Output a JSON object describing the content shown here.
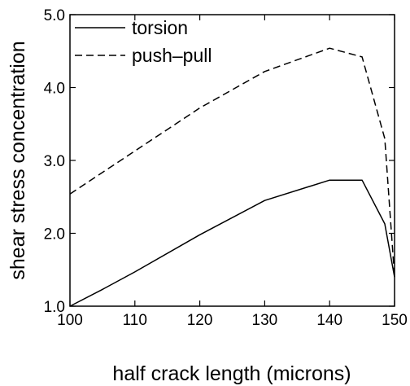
{
  "chart_data": {
    "type": "line",
    "title": "",
    "xlabel": "half crack length (microns)",
    "ylabel": "shear stress concentration",
    "xlim": [
      100,
      150
    ],
    "ylim": [
      1.0,
      5.0
    ],
    "xticks": [
      100,
      110,
      120,
      130,
      140,
      150
    ],
    "xtick_labels": [
      "100",
      "110",
      "120",
      "130",
      "140",
      "150"
    ],
    "yticks": [
      1.0,
      2.0,
      3.0,
      4.0,
      5.0
    ],
    "ytick_labels": [
      "1.0",
      "2.0",
      "3.0",
      "4.0",
      "5.0"
    ],
    "grid": false,
    "legend_position": "top-left",
    "series": [
      {
        "name": "torsion",
        "style": "solid",
        "color": "#000000",
        "points": [
          [
            100,
            1.0
          ],
          [
            105,
            1.23
          ],
          [
            110,
            1.47
          ],
          [
            120,
            1.98
          ],
          [
            130,
            2.45
          ],
          [
            140,
            2.73
          ],
          [
            145,
            2.73
          ],
          [
            148.5,
            2.13
          ],
          [
            150,
            1.4
          ]
        ]
      },
      {
        "name": "push–pull",
        "style": "dashed",
        "color": "#000000",
        "points": [
          [
            100,
            2.54
          ],
          [
            110,
            3.13
          ],
          [
            120,
            3.72
          ],
          [
            130,
            4.22
          ],
          [
            140,
            4.54
          ],
          [
            145,
            4.42
          ],
          [
            148.5,
            3.3
          ],
          [
            150,
            1.4
          ]
        ]
      }
    ]
  }
}
